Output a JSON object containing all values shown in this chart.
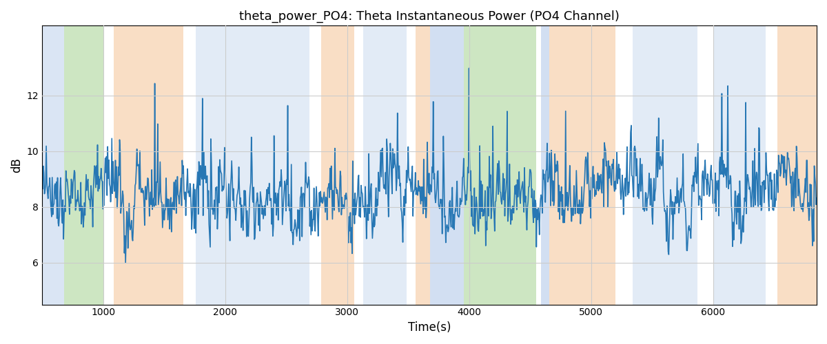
{
  "title": "theta_power_PO4: Theta Instantaneous Power (PO4 Channel)",
  "xlabel": "Time(s)",
  "ylabel": "dB",
  "ylim": [
    4.5,
    14.5
  ],
  "yticks": [
    6,
    8,
    10,
    12
  ],
  "line_color": "#2777b4",
  "line_width": 1.2,
  "background_regions": [
    {
      "start": 500,
      "end": 680,
      "color": "#aec6e8",
      "alpha": 0.45
    },
    {
      "start": 680,
      "end": 1000,
      "color": "#90c978",
      "alpha": 0.45
    },
    {
      "start": 1090,
      "end": 1660,
      "color": "#f5c396",
      "alpha": 0.55
    },
    {
      "start": 1760,
      "end": 2690,
      "color": "#aec6e8",
      "alpha": 0.35
    },
    {
      "start": 2790,
      "end": 3060,
      "color": "#f5c396",
      "alpha": 0.55
    },
    {
      "start": 3130,
      "end": 3490,
      "color": "#aec6e8",
      "alpha": 0.35
    },
    {
      "start": 3560,
      "end": 3680,
      "color": "#f5c396",
      "alpha": 0.55
    },
    {
      "start": 3680,
      "end": 3960,
      "color": "#aec6e8",
      "alpha": 0.55
    },
    {
      "start": 3960,
      "end": 4550,
      "color": "#90c978",
      "alpha": 0.45
    },
    {
      "start": 4590,
      "end": 4660,
      "color": "#aec6e8",
      "alpha": 0.55
    },
    {
      "start": 4660,
      "end": 5200,
      "color": "#f5c396",
      "alpha": 0.55
    },
    {
      "start": 5340,
      "end": 5870,
      "color": "#aec6e8",
      "alpha": 0.35
    },
    {
      "start": 6000,
      "end": 6430,
      "color": "#aec6e8",
      "alpha": 0.35
    },
    {
      "start": 6530,
      "end": 6850,
      "color": "#f5c396",
      "alpha": 0.55
    }
  ],
  "xlim": [
    500,
    6850
  ],
  "xticks": [
    1000,
    2000,
    3000,
    4000,
    5000,
    6000
  ],
  "grid_color": "#cccccc",
  "n_points": 1300
}
